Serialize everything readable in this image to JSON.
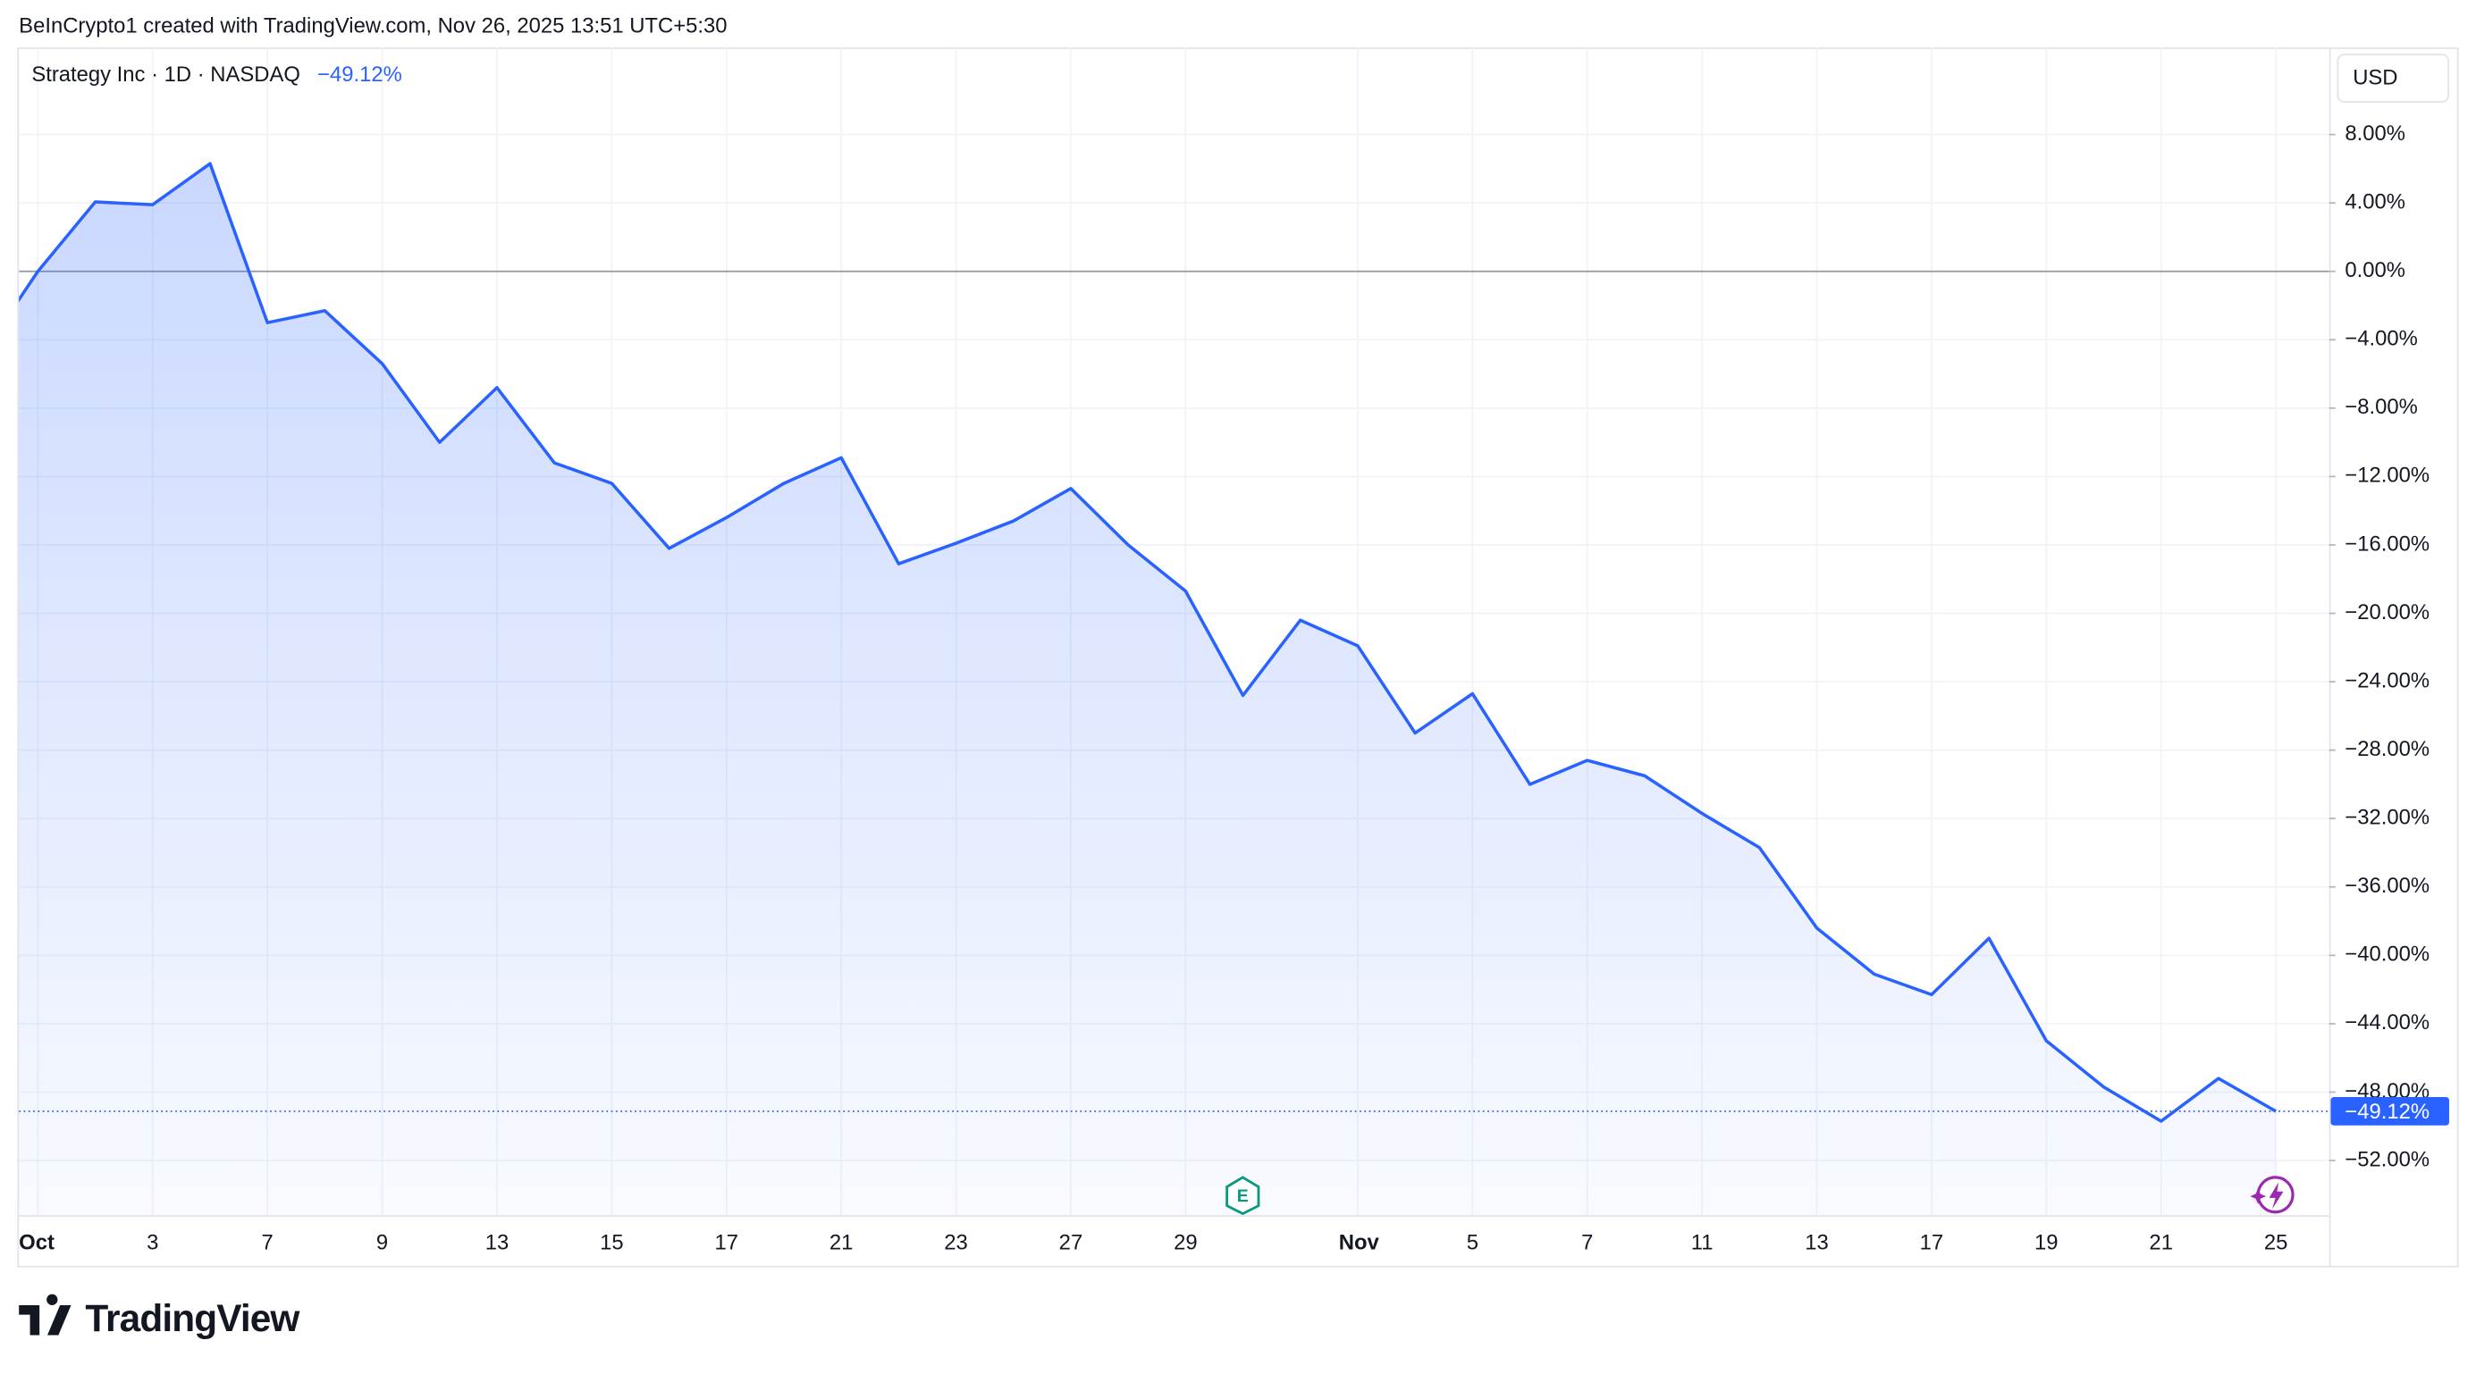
{
  "header": "BeInCrypto1 created with TradingView.com, Nov 26, 2025 13:51 UTC+5:30",
  "logo": "TradingView",
  "chart_data": {
    "type": "line",
    "title": "Strategy Inc · 1D · NASDAQ",
    "currency": "USD",
    "categories": [
      null,
      "Oct",
      null,
      "3",
      null,
      "7",
      null,
      "9",
      null,
      "13",
      null,
      "15",
      null,
      "17",
      null,
      "21",
      null,
      "23",
      null,
      "27",
      null,
      "29",
      null,
      null,
      "Nov",
      null,
      "5",
      null,
      "7",
      null,
      "11",
      null,
      "13",
      null,
      "17",
      null,
      "19",
      null,
      "21",
      null,
      "25"
    ],
    "series": [
      {
        "name": "Strategy Inc",
        "color": "#2962ff",
        "values": [
          -5.0,
          0.0,
          4.06,
          3.9,
          6.3,
          -3.0,
          -2.3,
          -5.4,
          -10.0,
          -6.8,
          -11.2,
          -12.4,
          -16.2,
          -14.4,
          -12.4,
          -10.9,
          -17.1,
          -15.9,
          -14.6,
          -12.7,
          -16.0,
          -18.7,
          -24.8,
          -20.4,
          -21.9,
          -27.0,
          -24.7,
          -30.0,
          -28.6,
          -29.5,
          -31.7,
          -33.7,
          -38.4,
          -41.1,
          -42.3,
          -39.0,
          -45.0,
          -47.7,
          -49.7,
          -47.2,
          -49.12
        ],
        "value_labels": [
          null,
          null,
          null,
          null,
          null,
          null,
          null,
          null,
          null,
          null,
          null,
          null,
          null,
          null,
          null,
          null,
          null,
          null,
          null,
          null,
          null,
          null,
          null,
          null,
          null,
          null,
          null,
          null,
          null,
          null,
          null,
          null,
          null,
          null,
          null,
          null,
          null,
          null,
          null,
          null,
          "−49.12%"
        ]
      }
    ],
    "ylim": [
      -55.2,
      13.1
    ],
    "yticks": [
      {
        "value": 8,
        "label": "8.00%"
      },
      {
        "value": 4,
        "label": "4.00%"
      },
      {
        "value": 0,
        "label": "0.00%"
      },
      {
        "value": -4,
        "label": "−4.00%"
      },
      {
        "value": -8,
        "label": "−8.00%"
      },
      {
        "value": -12,
        "label": "−12.00%"
      },
      {
        "value": -16,
        "label": "−16.00%"
      },
      {
        "value": -20,
        "label": "−20.00%"
      },
      {
        "value": -24,
        "label": "−24.00%"
      },
      {
        "value": -28,
        "label": "−28.00%"
      },
      {
        "value": -32,
        "label": "−32.00%"
      },
      {
        "value": -36,
        "label": "−36.00%"
      },
      {
        "value": -40,
        "label": "−40.00%"
      },
      {
        "value": -44,
        "label": "−44.00%"
      },
      {
        "value": -48,
        "label": "−48.00%"
      },
      {
        "value": -52,
        "label": "−52.00%"
      }
    ],
    "baseline": 0,
    "grid": true
  }
}
